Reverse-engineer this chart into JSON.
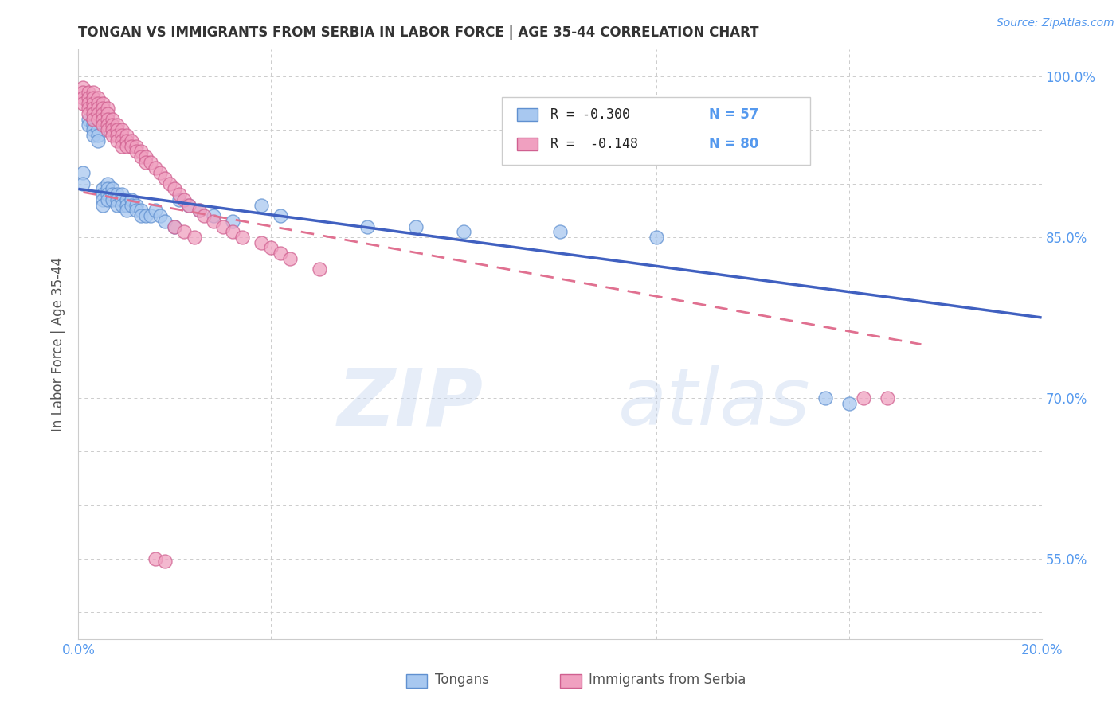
{
  "title": "TONGAN VS IMMIGRANTS FROM SERBIA IN LABOR FORCE | AGE 35-44 CORRELATION CHART",
  "source": "Source: ZipAtlas.com",
  "ylabel": "In Labor Force | Age 35-44",
  "x_min": 0.0,
  "x_max": 0.2,
  "y_min": 0.475,
  "y_max": 1.025,
  "x_tick_positions": [
    0.0,
    0.04,
    0.08,
    0.12,
    0.16,
    0.2
  ],
  "x_tick_labels": [
    "0.0%",
    "",
    "",
    "",
    "",
    "20.0%"
  ],
  "y_tick_positions": [
    0.5,
    0.55,
    0.6,
    0.65,
    0.7,
    0.75,
    0.8,
    0.85,
    0.9,
    0.95,
    1.0
  ],
  "y_tick_labels_right": [
    "",
    "55.0%",
    "",
    "",
    "70.0%",
    "",
    "",
    "85.0%",
    "",
    "",
    "100.0%"
  ],
  "blue_scatter_color": "#A8C8F0",
  "blue_edge_color": "#6090D0",
  "pink_scatter_color": "#F0A0C0",
  "pink_edge_color": "#D06090",
  "blue_line_color": "#4060C0",
  "pink_line_color": "#E07090",
  "legend_R_blue": "R = -0.300",
  "legend_N_blue": "N = 57",
  "legend_R_pink": "R =  -0.148",
  "legend_N_pink": "N = 80",
  "blue_line_x": [
    0.0,
    0.2
  ],
  "blue_line_y": [
    0.895,
    0.775
  ],
  "pink_line_x": [
    0.001,
    0.175
  ],
  "pink_line_y": [
    0.892,
    0.75
  ],
  "tongans_x": [
    0.001,
    0.001,
    0.002,
    0.002,
    0.003,
    0.003,
    0.003,
    0.003,
    0.004,
    0.004,
    0.004,
    0.005,
    0.005,
    0.005,
    0.005,
    0.006,
    0.006,
    0.006,
    0.006,
    0.007,
    0.007,
    0.007,
    0.008,
    0.008,
    0.008,
    0.009,
    0.009,
    0.009,
    0.01,
    0.01,
    0.01,
    0.011,
    0.011,
    0.012,
    0.012,
    0.013,
    0.013,
    0.014,
    0.015,
    0.016,
    0.017,
    0.018,
    0.02,
    0.021,
    0.023,
    0.025,
    0.028,
    0.032,
    0.038,
    0.042,
    0.06,
    0.07,
    0.08,
    0.1,
    0.12,
    0.155,
    0.16
  ],
  "tongans_y": [
    0.91,
    0.9,
    0.96,
    0.955,
    0.96,
    0.955,
    0.95,
    0.945,
    0.95,
    0.945,
    0.94,
    0.895,
    0.89,
    0.885,
    0.88,
    0.9,
    0.895,
    0.89,
    0.885,
    0.895,
    0.89,
    0.885,
    0.89,
    0.885,
    0.88,
    0.89,
    0.885,
    0.88,
    0.885,
    0.88,
    0.875,
    0.885,
    0.88,
    0.88,
    0.875,
    0.875,
    0.87,
    0.87,
    0.87,
    0.875,
    0.87,
    0.865,
    0.86,
    0.885,
    0.88,
    0.875,
    0.87,
    0.865,
    0.88,
    0.87,
    0.86,
    0.86,
    0.855,
    0.855,
    0.85,
    0.7,
    0.695
  ],
  "serbia_x": [
    0.001,
    0.001,
    0.001,
    0.001,
    0.002,
    0.002,
    0.002,
    0.002,
    0.002,
    0.003,
    0.003,
    0.003,
    0.003,
    0.003,
    0.003,
    0.004,
    0.004,
    0.004,
    0.004,
    0.004,
    0.005,
    0.005,
    0.005,
    0.005,
    0.005,
    0.006,
    0.006,
    0.006,
    0.006,
    0.006,
    0.007,
    0.007,
    0.007,
    0.007,
    0.008,
    0.008,
    0.008,
    0.008,
    0.009,
    0.009,
    0.009,
    0.009,
    0.01,
    0.01,
    0.01,
    0.011,
    0.011,
    0.012,
    0.012,
    0.013,
    0.013,
    0.014,
    0.014,
    0.015,
    0.016,
    0.017,
    0.018,
    0.019,
    0.02,
    0.021,
    0.022,
    0.023,
    0.025,
    0.026,
    0.028,
    0.03,
    0.032,
    0.034,
    0.038,
    0.04,
    0.042,
    0.044,
    0.05,
    0.02,
    0.022,
    0.024,
    0.016,
    0.018,
    0.163,
    0.168
  ],
  "serbia_y": [
    0.99,
    0.985,
    0.98,
    0.975,
    0.985,
    0.98,
    0.975,
    0.97,
    0.965,
    0.985,
    0.98,
    0.975,
    0.97,
    0.965,
    0.96,
    0.98,
    0.975,
    0.97,
    0.965,
    0.96,
    0.975,
    0.97,
    0.965,
    0.96,
    0.955,
    0.97,
    0.965,
    0.96,
    0.955,
    0.95,
    0.96,
    0.955,
    0.95,
    0.945,
    0.955,
    0.95,
    0.945,
    0.94,
    0.95,
    0.945,
    0.94,
    0.935,
    0.945,
    0.94,
    0.935,
    0.94,
    0.935,
    0.935,
    0.93,
    0.93,
    0.925,
    0.925,
    0.92,
    0.92,
    0.915,
    0.91,
    0.905,
    0.9,
    0.895,
    0.89,
    0.885,
    0.88,
    0.875,
    0.87,
    0.865,
    0.86,
    0.855,
    0.85,
    0.845,
    0.84,
    0.835,
    0.83,
    0.82,
    0.86,
    0.855,
    0.85,
    0.55,
    0.548,
    0.7,
    0.7
  ],
  "legend_box_color": "#FFFFFF",
  "legend_border_color": "#CCCCCC",
  "grid_color": "#CCCCCC",
  "title_color": "#333333",
  "axis_label_color": "#5599EE",
  "ylabel_color": "#555555"
}
